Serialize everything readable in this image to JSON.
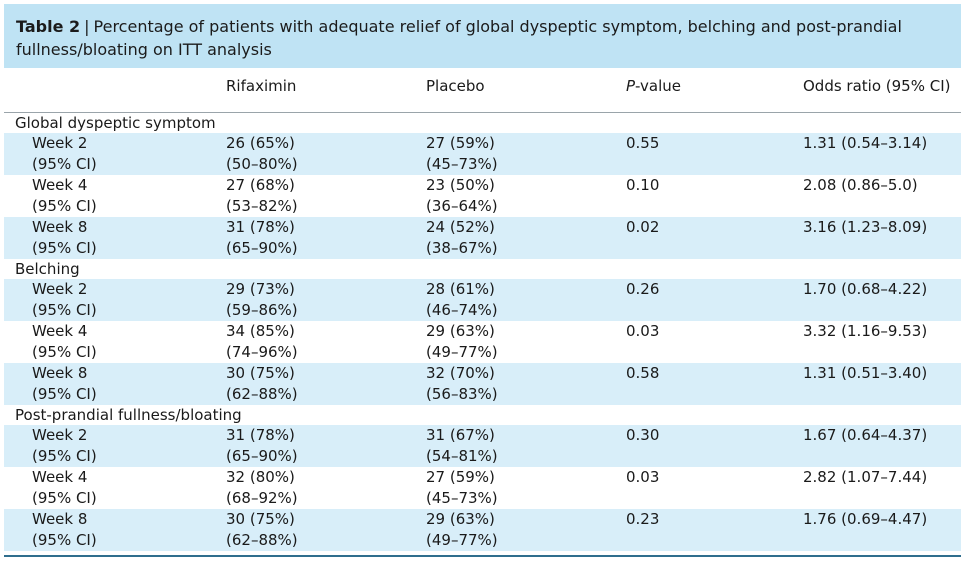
{
  "caption": {
    "label": "Table 2",
    "separator": "|",
    "text": "Percentage of patients with adequate relief of global dyspeptic symptom, belching and post-prandial fullness/bloating on ITT analysis"
  },
  "columns": {
    "first": "",
    "rifaximin": "Rifaximin",
    "placebo": "Placebo",
    "pvalue_letter": "P",
    "pvalue_rest": "-value",
    "odds": "Odds ratio (95% CI)"
  },
  "groups": [
    {
      "name": "Global dyspeptic symptom",
      "rows": [
        {
          "week": "Week 2",
          "ci_label": "(95% CI)",
          "rif": "26 (65%)",
          "rif_ci": "(50–80%)",
          "pla": "27 (59%)",
          "pla_ci": "(45–73%)",
          "p": "0.55",
          "or": "1.31 (0.54–3.14)"
        },
        {
          "week": "Week 4",
          "ci_label": "(95% CI)",
          "rif": "27 (68%)",
          "rif_ci": "(53–82%)",
          "pla": "23 (50%)",
          "pla_ci": "(36–64%)",
          "p": "0.10",
          "or": "2.08 (0.86–5.0)"
        },
        {
          "week": "Week 8",
          "ci_label": "(95% CI)",
          "rif": "31 (78%)",
          "rif_ci": "(65–90%)",
          "pla": "24 (52%)",
          "pla_ci": "(38–67%)",
          "p": "0.02",
          "or": "3.16 (1.23–8.09)"
        }
      ]
    },
    {
      "name": "Belching",
      "rows": [
        {
          "week": "Week 2",
          "ci_label": "(95% CI)",
          "rif": "29 (73%)",
          "rif_ci": "(59–86%)",
          "pla": "28 (61%)",
          "pla_ci": "(46–74%)",
          "p": "0.26",
          "or": "1.70 (0.68–4.22)"
        },
        {
          "week": "Week 4",
          "ci_label": "(95% CI)",
          "rif": "34 (85%)",
          "rif_ci": "(74–96%)",
          "pla": "29 (63%)",
          "pla_ci": "(49–77%)",
          "p": "0.03",
          "or": "3.32 (1.16–9.53)"
        },
        {
          "week": "Week 8",
          "ci_label": "(95% CI)",
          "rif": "30 (75%)",
          "rif_ci": "(62–88%)",
          "pla": "32 (70%)",
          "pla_ci": "(56–83%)",
          "p": "0.58",
          "or": "1.31 (0.51–3.40)"
        }
      ]
    },
    {
      "name": "Post-prandial fullness/bloating",
      "rows": [
        {
          "week": "Week 2",
          "ci_label": "(95% CI)",
          "rif": "31 (78%)",
          "rif_ci": "(65–90%)",
          "pla": "31 (67%)",
          "pla_ci": "(54–81%)",
          "p": "0.30",
          "or": "1.67 (0.64–4.37)"
        },
        {
          "week": "Week 4",
          "ci_label": "(95% CI)",
          "rif": "32 (80%)",
          "rif_ci": "(68–92%)",
          "pla": "27 (59%)",
          "pla_ci": "(45–73%)",
          "p": "0.03",
          "or": "2.82 (1.07–7.44)"
        },
        {
          "week": "Week 8",
          "ci_label": "(95% CI)",
          "rif": "30 (75%)",
          "rif_ci": "(62–88%)",
          "pla": "29 (63%)",
          "pla_ci": "(49–77%)",
          "p": "0.23",
          "or": "1.76 (0.69–4.47)"
        }
      ]
    }
  ],
  "colors": {
    "caption_bg": "#bfe3f4",
    "row_shade": "#d8eef9",
    "rule": "#2f6e8d"
  }
}
